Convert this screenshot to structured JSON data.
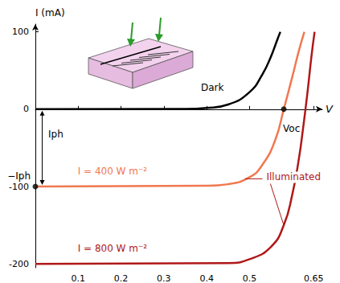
{
  "chart_data": {
    "type": "line",
    "x_label": "V",
    "y_label": "I (mA)",
    "xlim": [
      0,
      0.67
    ],
    "ylim": [
      -205,
      110
    ],
    "xticks": [
      0.1,
      0.2,
      0.3,
      0.4,
      0.5,
      0.65
    ],
    "yticks": [
      -200,
      -100,
      0,
      100
    ],
    "grid": false,
    "series": [
      {
        "name": "Dark",
        "color": "#000000",
        "x": [
          0,
          0.35,
          0.4,
          0.45,
          0.5,
          0.53,
          0.55,
          0.565,
          0.572
        ],
        "values": [
          0,
          0.2,
          1.5,
          6,
          22,
          45,
          68,
          90,
          100
        ]
      },
      {
        "name": "I = 400 W m⁻²",
        "color": "#f07850",
        "x": [
          0,
          0.4,
          0.45,
          0.5,
          0.53,
          0.56,
          0.58,
          0.6,
          0.615,
          0.628
        ],
        "values": [
          -100,
          -99,
          -97,
          -88,
          -72,
          -40,
          0,
          42,
          75,
          100
        ]
      },
      {
        "name": "I = 800 W m⁻²",
        "color": "#b01818",
        "x": [
          0,
          0.45,
          0.5,
          0.55,
          0.58,
          0.6,
          0.615,
          0.625,
          0.635,
          0.645,
          0.652
        ],
        "values": [
          -200,
          -199,
          -194,
          -178,
          -150,
          -110,
          -65,
          -25,
          20,
          70,
          100
        ]
      }
    ],
    "points": {
      "x": [
        0,
        0.58
      ],
      "values": [
        -100,
        0
      ]
    },
    "annotations": {
      "illuminated": "Illuminated",
      "voc": "Voc",
      "minus_iph": "−Iph",
      "iph": "Iph"
    }
  }
}
